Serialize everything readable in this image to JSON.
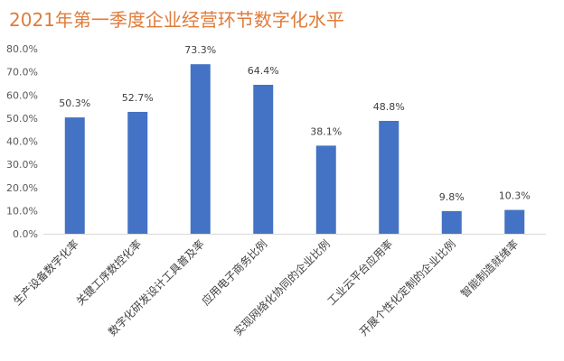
{
  "chart_data": {
    "type": "bar",
    "title": "2021年第一季度企业经营环节数字化水平",
    "categories": [
      "生产设备数字化率",
      "关键工序数控化率",
      "数字化研发设计工具普及率",
      "应用电子商务比例",
      "实现网络化协同的企业比例",
      "工业云平台应用率",
      "开展个性化定制的企业比例",
      "智能制造就绪率"
    ],
    "values": [
      50.3,
      52.7,
      73.3,
      64.4,
      38.1,
      48.8,
      9.8,
      10.3
    ],
    "data_labels": [
      "50.3%",
      "52.7%",
      "73.3%",
      "64.4%",
      "38.1%",
      "48.8%",
      "9.8%",
      "10.3%"
    ],
    "y_ticks": [
      "0.0%",
      "10.0%",
      "20.0%",
      "30.0%",
      "40.0%",
      "50.0%",
      "60.0%",
      "70.0%",
      "80.0%"
    ],
    "ylim": [
      0,
      80
    ],
    "xlabel": "",
    "ylabel": "",
    "grid": false,
    "legend": "none",
    "bar_color": "#4472c4",
    "title_color": "#e07b39"
  }
}
